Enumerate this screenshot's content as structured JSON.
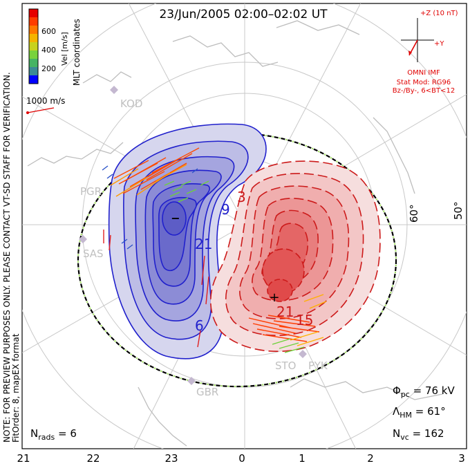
{
  "title": "23/Jun/2005 02:00–02:02 UT",
  "colorbar": {
    "ticks": [
      "600",
      "400",
      "200"
    ],
    "unit": "Vel [m/s]",
    "colors": [
      "#0000ff",
      "#2a52c8",
      "#3c8a96",
      "#46b464",
      "#78d23c",
      "#c8d21e",
      "#f5b400",
      "#ff7800",
      "#ff3c00",
      "#e60000"
    ]
  },
  "coords_label": "MLT coordinates",
  "vector_scale": "1000 m/s",
  "stations": [
    "KOD",
    "PGR",
    "SAS",
    "STO",
    "PYK",
    "GBR"
  ],
  "imf": {
    "z_label": "+Z (10 nT)",
    "y_label": "+Y",
    "source": "OMNI IMF",
    "model": "Stat Mod: RG96",
    "condition": "Bz-/By-, 6<BT<12"
  },
  "contour_labels": [
    "9",
    "3",
    "21",
    "6",
    "21",
    "15"
  ],
  "extrema": {
    "min": "−",
    "max": "+"
  },
  "latitude_labels": [
    "60°",
    "50°"
  ],
  "mlt_ticks": [
    "21",
    "22",
    "23",
    "0",
    "1",
    "2",
    "3"
  ],
  "side_note": "NOTE: FOR PREVIEW PURPOSES ONLY. PLEASE CONTACT VT-SD STAFF FOR VERIFICATION.",
  "side_note2": "FitOrder: 8, mapEX format",
  "stats": {
    "phi_symbol": "Φ",
    "phi_sub": "pc",
    "phi_value": " = 76 kV",
    "lambda_symbol": "Λ",
    "lambda_sub": "HM",
    "lambda_value": " = 61°",
    "nvc_symbol": "N",
    "nvc_sub": "vc",
    "nvc_value": " = 162",
    "nrads_symbol": "N",
    "nrads_sub": "rads",
    "nrads_value": " = 6"
  }
}
